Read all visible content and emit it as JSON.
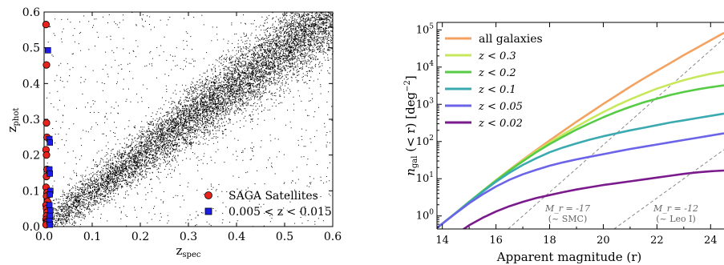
{
  "chart_data": [
    {
      "type": "scatter",
      "xlabel": "z",
      "xlabel_sub": "spec",
      "ylabel": "z",
      "ylabel_sub": "phot",
      "xlim": [
        0.0,
        0.6
      ],
      "ylim": [
        0.0,
        0.6
      ],
      "xticks": [
        "0.0",
        "0.1",
        "0.2",
        "0.3",
        "0.4",
        "0.5",
        "0.6"
      ],
      "yticks": [
        "0.0",
        "0.1",
        "0.2",
        "0.3",
        "0.4",
        "0.5",
        "0.6"
      ],
      "legend_position": "bottom-right",
      "grid": false,
      "series": [
        {
          "name": "SAGA Satellites",
          "marker": "circle",
          "color": "#e8231e",
          "x": [
            0.004,
            0.005,
            0.005,
            0.006,
            0.004,
            0.005,
            0.006,
            0.005,
            0.004,
            0.006,
            0.005,
            0.007,
            0.004,
            0.005,
            0.006,
            0.005,
            0.004,
            0.006,
            0.005,
            0.004
          ],
          "y": [
            0.565,
            0.452,
            0.29,
            0.25,
            0.215,
            0.2,
            0.16,
            0.14,
            0.11,
            0.095,
            0.085,
            0.07,
            0.06,
            0.05,
            0.04,
            0.03,
            0.02,
            0.015,
            0.01,
            0.005
          ]
        },
        {
          "name": "0.005 < z < 0.015",
          "marker": "square",
          "color": "#1c1ce8",
          "x": [
            0.008,
            0.011,
            0.012,
            0.011,
            0.012,
            0.013,
            0.012,
            0.011,
            0.013,
            0.012,
            0.011,
            0.012
          ],
          "y": [
            0.493,
            0.245,
            0.235,
            0.16,
            0.148,
            0.1,
            0.09,
            0.06,
            0.045,
            0.03,
            0.015,
            0.005
          ]
        }
      ],
      "background_note": "dense cloud of black photometric galaxies along zphot ≈ zspec"
    },
    {
      "type": "line",
      "xlabel": "Apparent magnitude (r)",
      "ylabel": "n_gal (< r) [deg^-2]",
      "xlim": [
        13.8,
        24.5
      ],
      "ylim_log10": [
        -0.35,
        5.2
      ],
      "xticks": [
        "14",
        "16",
        "18",
        "20",
        "22",
        "24"
      ],
      "yticks": [
        "10^0",
        "10^1",
        "10^2",
        "10^3",
        "10^4",
        "10^5"
      ],
      "legend_position": "top-left",
      "x": [
        13.8,
        14.5,
        15,
        15.5,
        16,
        16.5,
        17,
        17.5,
        18,
        18.5,
        19,
        19.5,
        20,
        20.5,
        21,
        21.5,
        22,
        22.5,
        23,
        23.5,
        24,
        24.5
      ],
      "series": [
        {
          "name": "all galaxies",
          "color": "#f4a261",
          "log10": [
            -0.32,
            0.08,
            0.38,
            0.67,
            0.96,
            1.24,
            1.51,
            1.77,
            2.03,
            2.28,
            2.53,
            2.77,
            3.01,
            3.24,
            3.47,
            3.69,
            3.9,
            4.11,
            4.32,
            4.52,
            4.72,
            4.92
          ]
        },
        {
          "name": "z < 0.3",
          "color": "#c6e85a",
          "log10": [
            -0.32,
            0.08,
            0.38,
            0.67,
            0.96,
            1.23,
            1.49,
            1.74,
            1.97,
            2.19,
            2.4,
            2.6,
            2.79,
            2.97,
            3.13,
            3.28,
            3.42,
            3.54,
            3.65,
            3.74,
            3.82,
            3.88
          ]
        },
        {
          "name": "z < 0.2",
          "color": "#55cc44",
          "log10": [
            -0.32,
            0.08,
            0.38,
            0.67,
            0.95,
            1.22,
            1.47,
            1.71,
            1.93,
            2.13,
            2.32,
            2.49,
            2.65,
            2.8,
            2.93,
            3.05,
            3.15,
            3.25,
            3.33,
            3.4,
            3.46,
            3.51
          ]
        },
        {
          "name": "z < 0.1",
          "color": "#3aaab0",
          "log10": [
            -0.32,
            0.08,
            0.37,
            0.65,
            0.92,
            1.16,
            1.37,
            1.55,
            1.71,
            1.84,
            1.95,
            2.05,
            2.14,
            2.22,
            2.3,
            2.37,
            2.44,
            2.51,
            2.57,
            2.63,
            2.69,
            2.75
          ]
        },
        {
          "name": "z < 0.05",
          "color": "#6b63e8",
          "log10": [
            -0.32,
            0.07,
            0.34,
            0.58,
            0.79,
            0.97,
            1.12,
            1.24,
            1.35,
            1.44,
            1.52,
            1.59,
            1.66,
            1.73,
            1.8,
            1.86,
            1.92,
            1.98,
            2.04,
            2.1,
            2.16,
            2.22
          ]
        },
        {
          "name": "z < 0.02",
          "color": "#7a1a8c",
          "log10": [
            -1.2,
            -0.5,
            -0.25,
            -0.05,
            0.12,
            0.26,
            0.38,
            0.48,
            0.56,
            0.64,
            0.71,
            0.77,
            0.83,
            0.88,
            0.93,
            0.98,
            1.03,
            1.08,
            1.13,
            1.17,
            1.2,
            1.22
          ]
        }
      ],
      "reference_lines": [
        {
          "label_line1": "M_r = -17",
          "label_line2": "(~ SMC)",
          "color": "#888888",
          "x": [
            16.45,
            24.5
          ],
          "log10": [
            -0.35,
            4.77
          ]
        },
        {
          "label_line1": "M_r = -12",
          "label_line2": "(~ Leo I)",
          "color": "#888888",
          "x": [
            20.4,
            24.5
          ],
          "log10": [
            -0.35,
            1.78
          ]
        }
      ]
    }
  ]
}
